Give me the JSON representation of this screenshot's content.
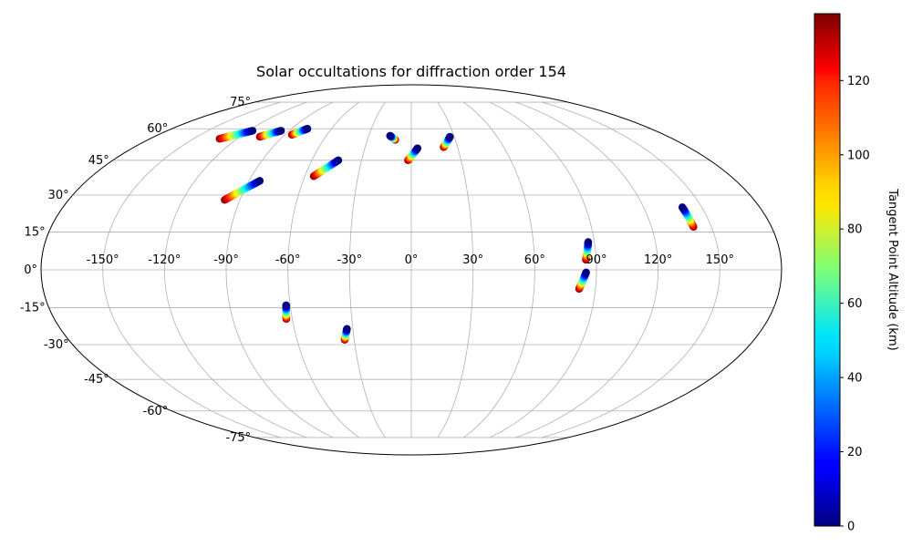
{
  "chart_data": {
    "type": "scatter",
    "projection": "mollweide",
    "title": "Solar occultations for diffraction order 154",
    "xlabel": "",
    "ylabel": "",
    "grid": true,
    "x_range": [
      -180,
      180
    ],
    "y_range": [
      -90,
      90
    ],
    "lon_tick_labels": [
      {
        "value": -150,
        "label": "-150°"
      },
      {
        "value": -120,
        "label": "-120°"
      },
      {
        "value": -90,
        "label": "-90°"
      },
      {
        "value": -60,
        "label": "-60°"
      },
      {
        "value": -30,
        "label": "-30°"
      },
      {
        "value": 0,
        "label": "0°"
      },
      {
        "value": 30,
        "label": "30°"
      },
      {
        "value": 60,
        "label": "60°"
      },
      {
        "value": 90,
        "label": "90°"
      },
      {
        "value": 120,
        "label": "120°"
      },
      {
        "value": 150,
        "label": "150°"
      }
    ],
    "lat_tick_labels": [
      {
        "value": 75,
        "label": "75°"
      },
      {
        "value": 60,
        "label": "60°"
      },
      {
        "value": 45,
        "label": "45°"
      },
      {
        "value": 30,
        "label": "30°"
      },
      {
        "value": 15,
        "label": "15°"
      },
      {
        "value": 0,
        "label": "0°"
      },
      {
        "value": -15,
        "label": "-15°"
      },
      {
        "value": -30,
        "label": "-30°"
      },
      {
        "value": -45,
        "label": "-45°"
      },
      {
        "value": -60,
        "label": "-60°"
      },
      {
        "value": -75,
        "label": "-75°"
      }
    ],
    "colorbar": {
      "label": "Tangent Point Altitude (km)",
      "colormap": "jet",
      "range": [
        0,
        138
      ],
      "ticks": [
        {
          "value": 0,
          "label": "0"
        },
        {
          "value": 20,
          "label": "20"
        },
        {
          "value": 40,
          "label": "40"
        },
        {
          "value": 60,
          "label": "60"
        },
        {
          "value": 80,
          "label": "80"
        },
        {
          "value": 100,
          "label": "100"
        },
        {
          "value": 120,
          "label": "120"
        }
      ]
    },
    "tracks": [
      {
        "lon_start": -132,
        "lat_start": 55.0,
        "lon_end": -117,
        "lat_end": 59.0,
        "alt_start": 138,
        "alt_end": 0
      },
      {
        "lon_start": -106,
        "lat_start": 56.0,
        "lon_end": -96,
        "lat_end": 59.0,
        "alt_start": 138,
        "alt_end": 0
      },
      {
        "lon_start": -85,
        "lat_start": 57.0,
        "lon_end": -78,
        "lat_end": 60.0,
        "alt_start": 138,
        "alt_end": 0
      },
      {
        "lon_start": -98,
        "lat_start": 28.0,
        "lon_end": -84,
        "lat_end": 36.0,
        "alt_start": 138,
        "alt_end": 0
      },
      {
        "lon_start": -55,
        "lat_start": 38.0,
        "lon_end": -44,
        "lat_end": 45.0,
        "alt_start": 138,
        "alt_end": 0
      },
      {
        "lon_start": -11,
        "lat_start": 54.5,
        "lon_end": -15,
        "lat_end": 56.5,
        "alt_start": 138,
        "alt_end": 0
      },
      {
        "lon_start": -2,
        "lat_start": 45.0,
        "lon_end": 4,
        "lat_end": 50.5,
        "alt_start": 138,
        "alt_end": 0
      },
      {
        "lon_start": 21,
        "lat_start": 51.0,
        "lon_end": 27,
        "lat_end": 56.0,
        "alt_start": 138,
        "alt_end": 0
      },
      {
        "lon_start": 141,
        "lat_start": 17.0,
        "lon_end": 140,
        "lat_end": 25.0,
        "alt_start": 138,
        "alt_end": 0
      },
      {
        "lon_start": 85,
        "lat_start": 4.0,
        "lon_end": 87,
        "lat_end": 11.0,
        "alt_start": 138,
        "alt_end": 0
      },
      {
        "lon_start": 82,
        "lat_start": -7.5,
        "lon_end": 85,
        "lat_end": -1.0,
        "alt_start": 138,
        "alt_end": 0
      },
      {
        "lon_start": -63,
        "lat_start": -19.5,
        "lon_end": -62,
        "lat_end": -14.0,
        "alt_start": 138,
        "alt_end": 0
      },
      {
        "lon_start": -35,
        "lat_start": -28.0,
        "lon_end": -33,
        "lat_end": -23.5,
        "alt_start": 138,
        "alt_end": 0
      }
    ]
  }
}
